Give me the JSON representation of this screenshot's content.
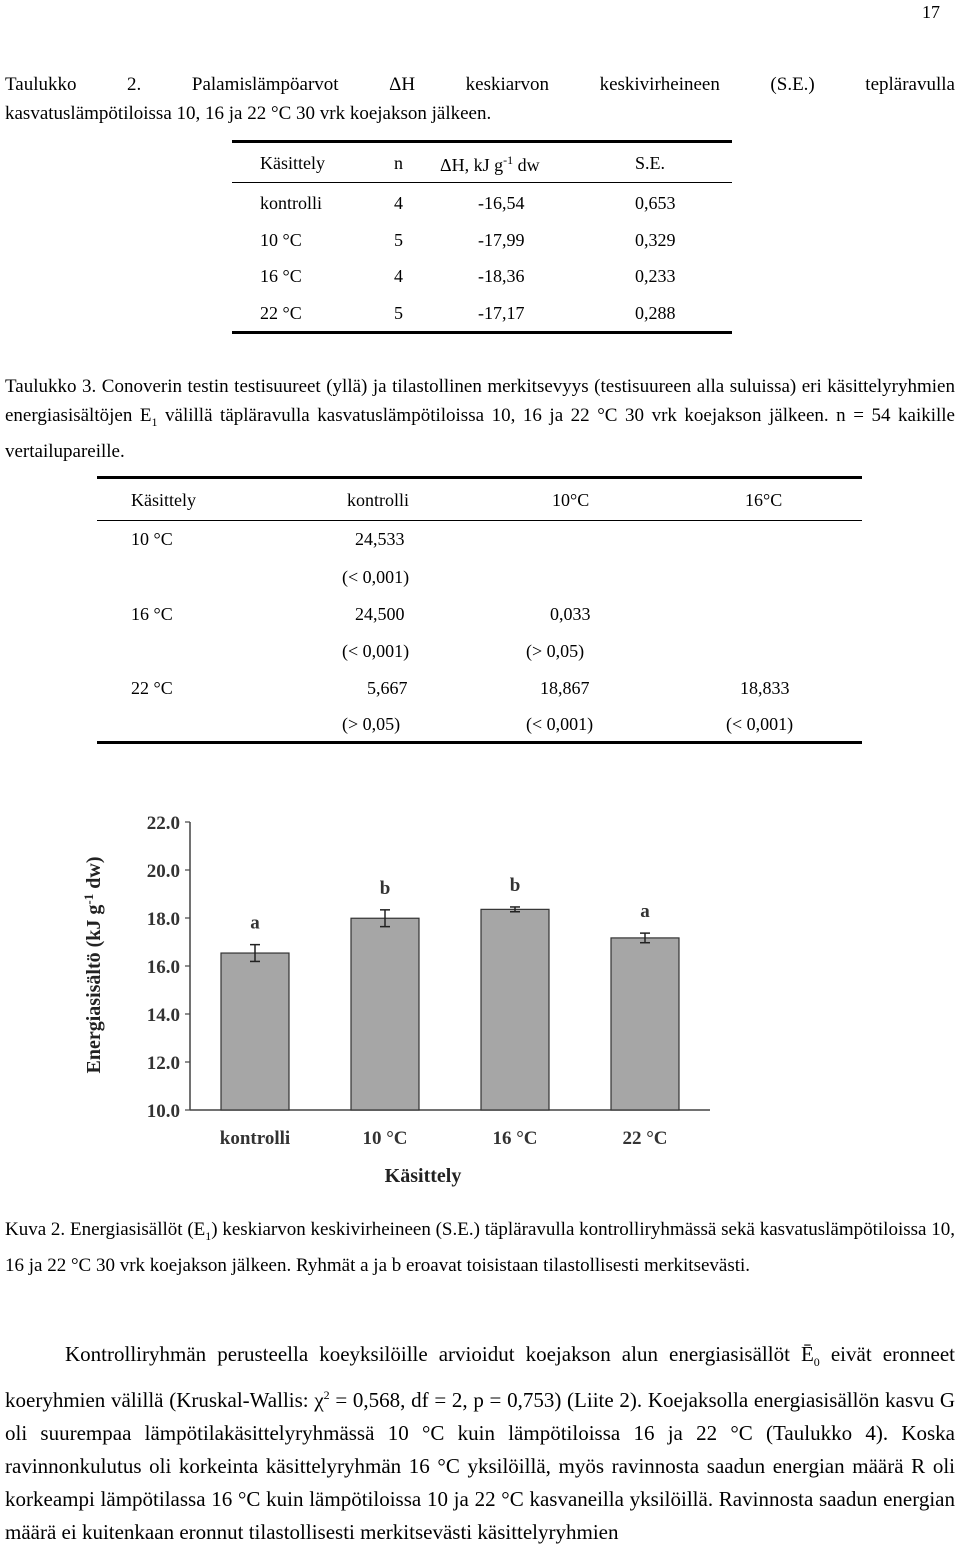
{
  "page_number": "17",
  "table2": {
    "caption_line1": "Taulukko  2.  Palamislämpöarvot  ΔH  keskiarvon  keskivirheineen  (S.E.)  tepläravulla",
    "caption_line2": "kasvatuslämpötiloissa 10, 16 ja 22 °C 30 vrk koejakson jälkeen.",
    "headers": [
      "Käsittely",
      "n",
      "ΔH, kJ g",
      "-1",
      " dw",
      "S.E."
    ],
    "rows": [
      {
        "kasittely": "kontrolli",
        "n": "4",
        "dh": "-16,54",
        "se": "0,653"
      },
      {
        "kasittely": "10 °C",
        "n": "5",
        "dh": "-17,99",
        "se": "0,329"
      },
      {
        "kasittely": "16 °C",
        "n": "4",
        "dh": "-18,36",
        "se": "0,233"
      },
      {
        "kasittely": "22 °C",
        "n": "5",
        "dh": "-17,17",
        "se": "0,288"
      }
    ]
  },
  "table3": {
    "caption_a": "Taulukko 3. Conoverin testin testisuureet (yllä) ja tilastollinen merkitsevyys (testisuureen alla suluissa) eri käsittelyryhmien energiasisältöjen E",
    "caption_sub": "1",
    "caption_b": " välillä täpläravulla kasvatuslämpötiloissa 10, 16 ja 22 °C 30 vrk koejakson jälkeen. n = 54 kaikille vertailupareille.",
    "headers": [
      "Käsittely",
      "kontrolli",
      "10°C",
      "16°C"
    ],
    "rows": [
      {
        "label": "10 °C",
        "kontrolli": "24,533",
        "kontrolli_p": "(< 0,001)",
        "c10": "",
        "c10_p": "",
        "c16": "",
        "c16_p": ""
      },
      {
        "label": "16 °C",
        "kontrolli": "24,500",
        "kontrolli_p": "(< 0,001)",
        "c10": "0,033",
        "c10_p": "(> 0,05)",
        "c16": "",
        "c16_p": ""
      },
      {
        "label": "22 °C",
        "kontrolli": "5,667",
        "kontrolli_p": "(> 0,05)",
        "c10": "18,867",
        "c10_p": "(< 0,001)",
        "c16": "18,833",
        "c16_p": "(< 0,001)"
      }
    ]
  },
  "chart_data": {
    "type": "bar",
    "categories": [
      "kontrolli",
      "10 °C",
      "16 °C",
      "22 °C"
    ],
    "values": [
      16.54,
      17.99,
      18.36,
      17.17
    ],
    "errors": [
      0.35,
      0.35,
      0.1,
      0.2
    ],
    "significance_letters": [
      "a",
      "b",
      "b",
      "a"
    ],
    "xlabel": "Käsittely",
    "ylabel": "Energiasisältö (kJ g",
    "ylabel_sup": "-1",
    "ylabel_end": " dw)",
    "ylim": [
      10.0,
      22.0
    ],
    "yticks": [
      "10.0",
      "12.0",
      "14.0",
      "16.0",
      "18.0",
      "20.0",
      "22.0"
    ],
    "bar_color": "#a6a6a6",
    "grid": false
  },
  "figure_caption": {
    "part1": "Kuva 2. Energiasisällöt (E",
    "sub": "1",
    "part2": ") keskiarvon keskivirheineen (S.E.) täpläravulla kontrolliryhmässä sekä kasvatuslämpötiloissa 10, 16 ja 22 °C 30 vrk koejakson jälkeen. Ryhmät a ja b eroavat toisistaan tilastollisesti merkitsevästi."
  },
  "body": {
    "p1a": "Kontrolliryhmän perusteella koeyksilöille arvioidut koejakson alun energiasisällöt Ē",
    "p1sub": "0",
    "p1b": " eivät eronneet koeryhmien välillä (Kruskal-Wallis: χ",
    "p1sup": "2",
    "p1c": " = 0,568, df = 2, p = 0,753) (Liite 2). Koejaksolla energiasisällön kasvu G oli suurempaa lämpötilakäsittelyryhmässä 10 °C kuin lämpötiloissa 16 ja 22 °C (Taulukko 4). Koska ravinnonkulutus oli korkeinta käsittelyryhmän 16 °C yksilöillä, myös ravinnosta saadun energian määrä R oli korkeampi lämpötilassa 16 °C kuin lämpötiloissa 10 ja 22 °C kasvaneilla yksilöillä. Ravinnosta saadun energian määrä ei kuitenkaan eronnut tilastollisesti merkitsevästi käsittelyryhmien"
  }
}
